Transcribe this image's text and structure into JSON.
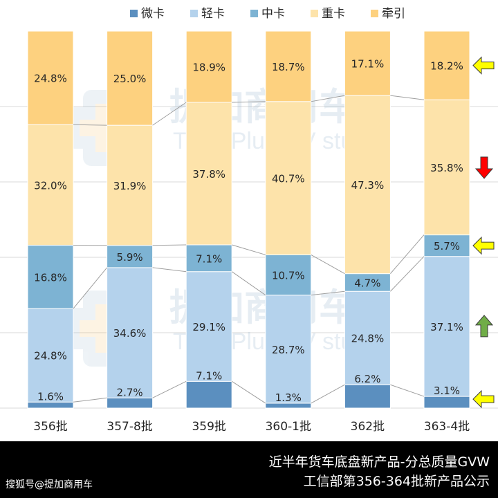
{
  "chart_data": {
    "type": "bar",
    "stacked": true,
    "normalized": true,
    "categories": [
      "356批",
      "357-8批",
      "359批",
      "360-1批",
      "362批",
      "363-4批"
    ],
    "series": [
      {
        "name": "微卡",
        "values": [
          1.6,
          2.7,
          7.1,
          1.3,
          6.2,
          3.1
        ],
        "color": "#5b8fbf"
      },
      {
        "name": "轻卡",
        "values": [
          24.8,
          34.6,
          29.1,
          28.7,
          24.8,
          37.1
        ],
        "color": "#b4d2ec"
      },
      {
        "name": "中卡",
        "values": [
          16.8,
          5.9,
          7.1,
          10.7,
          4.7,
          5.7
        ],
        "color": "#7db3d3"
      },
      {
        "name": "重卡",
        "values": [
          32.0,
          31.9,
          37.8,
          40.7,
          47.3,
          35.8
        ],
        "color": "#fde3aa"
      },
      {
        "name": "牵引",
        "values": [
          24.8,
          25.0,
          18.9,
          18.7,
          17.1,
          18.2
        ],
        "color": "#fdd17f"
      }
    ],
    "value_format": "%",
    "ylim": [
      0,
      100
    ],
    "legend_position": "top",
    "trend_markers": [
      {
        "series": "牵引",
        "direction": "left",
        "color": "#ffff00"
      },
      {
        "series": "重卡",
        "direction": "down",
        "color": "#ff0000"
      },
      {
        "series": "中卡",
        "direction": "left",
        "color": "#ffff00"
      },
      {
        "series": "轻卡",
        "direction": "up",
        "color": "#70ad47"
      },
      {
        "series": "微卡",
        "direction": "left",
        "color": "#ffff00"
      }
    ]
  },
  "watermark": {
    "brand": "提加商用车",
    "tagline": "TruckPlus CV studio"
  },
  "footer": {
    "title": "近半年货车底盘新产品-分总质量GVW",
    "subtitle": "工信部第356-364批新产品公示",
    "source": "搜狐号@提加商用车"
  }
}
